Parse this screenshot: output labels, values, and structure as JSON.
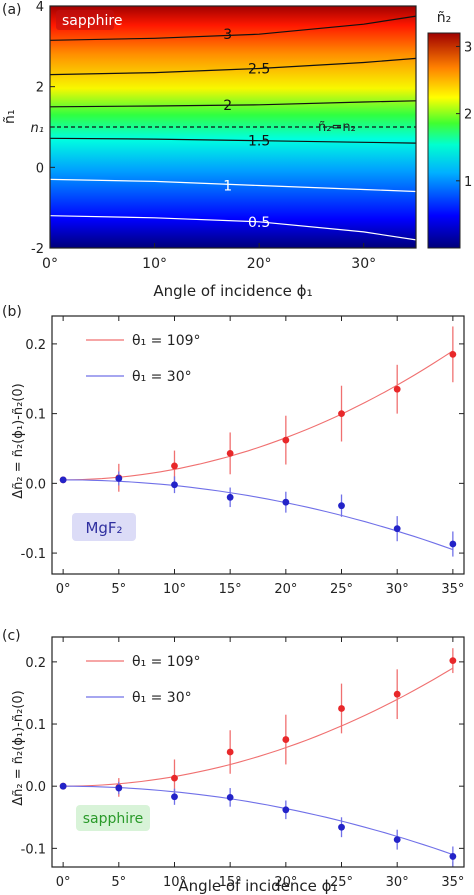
{
  "panel_a": {
    "label": "(a)",
    "material_label": "sapphire",
    "colorbar_title": "ñ₂",
    "colorbar_ticks": [
      "1",
      "2",
      "3"
    ],
    "y_tick_labels": [
      "4",
      "2",
      "n₁",
      "0",
      "-2"
    ],
    "y_axis_label": "ñ₁",
    "x_tick_labels": [
      "0°",
      "10°",
      "20°",
      "30°"
    ],
    "x_axis_label": "Angle of incidence ϕ₁",
    "dashed_line_label": "ñ₂=n₂",
    "contour_labels": [
      "3",
      "2.5",
      "2",
      "1.5",
      "1",
      "0.5"
    ]
  },
  "panel_b": {
    "label": "(b)",
    "material_label": "MgF₂",
    "y_axis_label": "Δñ₂ = ñ₂(ϕ₁)-ñ₂(0)",
    "y_tick_labels": [
      "0.2",
      "0.1",
      "0.0",
      "-0.1"
    ],
    "x_tick_labels": [
      "0°",
      "5°",
      "10°",
      "15°",
      "20°",
      "25°",
      "30°",
      "35°"
    ],
    "legend": [
      "θ₁ = 109°",
      "θ₁ = 30°"
    ]
  },
  "panel_c": {
    "label": "(c)",
    "material_label": "sapphire",
    "y_axis_label": "Δñ₂ = ñ₂(ϕ₁)-ñ₂(0)",
    "y_tick_labels": [
      "0.2",
      "0.1",
      "0.0",
      "-0.1"
    ],
    "x_tick_labels": [
      "0°",
      "5°",
      "10°",
      "15°",
      "20°",
      "25°",
      "30°",
      "35°"
    ],
    "x_axis_label": "Angle of incidence ϕ₁",
    "legend": [
      "θ₁ = 109°",
      "θ₁ = 30°"
    ]
  },
  "colors": {
    "red_series": "#e8282a",
    "blue_series": "#2323c8",
    "red_fit": "#f07070",
    "blue_fit": "#7070e8"
  },
  "chart_data": [
    {
      "type": "heatmap",
      "xlim": [
        0,
        35
      ],
      "ylim": [
        -2,
        4
      ],
      "colorbar_range": [
        0,
        3.2
      ],
      "n1_value": 1.0,
      "contours": [
        {
          "label": "3",
          "x": [
            0,
            10,
            20,
            30,
            35
          ],
          "y": [
            3.15,
            3.2,
            3.3,
            3.55,
            3.75
          ]
        },
        {
          "label": "2.5",
          "x": [
            0,
            10,
            20,
            30,
            35
          ],
          "y": [
            2.3,
            2.35,
            2.45,
            2.6,
            2.7
          ]
        },
        {
          "label": "2",
          "x": [
            0,
            10,
            20,
            30,
            35
          ],
          "y": [
            1.5,
            1.52,
            1.55,
            1.62,
            1.65
          ]
        },
        {
          "label": "1.5",
          "x": [
            0,
            10,
            20,
            30,
            35
          ],
          "y": [
            0.72,
            0.7,
            0.66,
            0.62,
            0.6
          ]
        },
        {
          "label": "1",
          "x": [
            0,
            10,
            20,
            30,
            35
          ],
          "y": [
            -0.3,
            -0.35,
            -0.45,
            -0.55,
            -0.6
          ]
        },
        {
          "label": "0.5",
          "x": [
            0,
            10,
            20,
            30,
            35
          ],
          "y": [
            -1.2,
            -1.25,
            -1.35,
            -1.6,
            -1.8
          ]
        }
      ],
      "dashed_y": 1.0
    },
    {
      "type": "scatter",
      "xlim": [
        -1,
        36
      ],
      "ylim": [
        -0.13,
        0.24
      ],
      "series": [
        {
          "name": "θ₁ = 109°",
          "x": [
            0,
            5,
            10,
            15,
            20,
            25,
            30,
            35
          ],
          "y": [
            0.005,
            0.008,
            0.025,
            0.043,
            0.062,
            0.1,
            0.135,
            0.185
          ],
          "err": [
            0.0,
            0.02,
            0.022,
            0.03,
            0.035,
            0.04,
            0.035,
            0.04
          ],
          "fit_end": 0.19
        },
        {
          "name": "θ₁ = 30°",
          "x": [
            0,
            5,
            10,
            15,
            20,
            25,
            30,
            35
          ],
          "y": [
            0.005,
            0.007,
            -0.002,
            -0.02,
            -0.027,
            -0.032,
            -0.065,
            -0.087
          ],
          "err": [
            0.0,
            0.01,
            0.012,
            0.014,
            0.015,
            0.016,
            0.018,
            0.018
          ],
          "fit_end": -0.095
        }
      ]
    },
    {
      "type": "scatter",
      "xlim": [
        -1,
        36
      ],
      "ylim": [
        -0.13,
        0.24
      ],
      "series": [
        {
          "name": "θ₁ = 109°",
          "x": [
            0,
            5,
            10,
            15,
            20,
            25,
            30,
            35
          ],
          "y": [
            0.0,
            -0.002,
            0.013,
            0.055,
            0.075,
            0.125,
            0.148,
            0.202
          ],
          "err": [
            0.0,
            0.015,
            0.03,
            0.035,
            0.04,
            0.04,
            0.04,
            0.02
          ],
          "fit_end": 0.19
        },
        {
          "name": "θ₁ = 30°",
          "x": [
            0,
            5,
            10,
            15,
            20,
            25,
            30,
            35
          ],
          "y": [
            0.0,
            -0.003,
            -0.017,
            -0.018,
            -0.038,
            -0.066,
            -0.086,
            -0.113
          ],
          "err": [
            0.0,
            0.01,
            0.013,
            0.015,
            0.015,
            0.016,
            0.016,
            0.016
          ],
          "fit_end": -0.11
        }
      ]
    }
  ]
}
